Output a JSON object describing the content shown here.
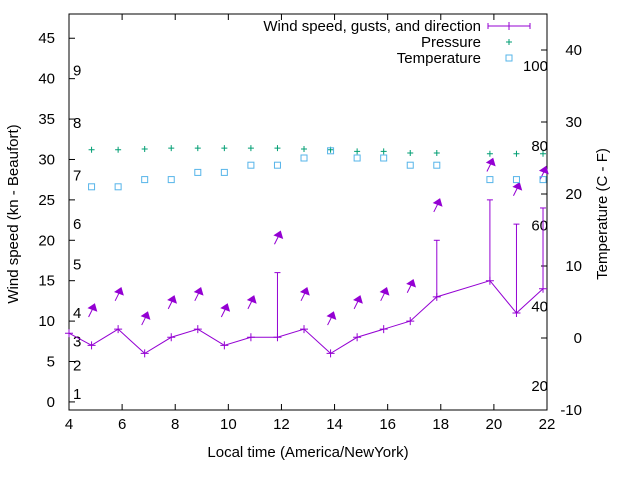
{
  "chart_data": {
    "type": "line",
    "xlabel": "Local time (America/NewYork)",
    "ylabel_left": "Wind speed (kn - Beaufort)",
    "ylabel_right": "Temperature (C - F)",
    "xlim": [
      4,
      22
    ],
    "ylim_left": [
      -1,
      48
    ],
    "ylim_right": [
      -10,
      45
    ],
    "x_ticks": [
      "4",
      "6",
      "8",
      "10",
      "12",
      "14",
      "16",
      "18",
      "20",
      "22"
    ],
    "y_left_ticks": [
      "0",
      "5",
      "10",
      "15",
      "20",
      "25",
      "30",
      "35",
      "40",
      "45"
    ],
    "y_right_ticks": [
      "-10",
      "0",
      "10",
      "20",
      "30",
      "40"
    ],
    "beaufort_labels": [
      {
        "label": "1",
        "kn": 1
      },
      {
        "label": "2",
        "kn": 4.5
      },
      {
        "label": "3",
        "kn": 7.5
      },
      {
        "label": "4",
        "kn": 11
      },
      {
        "label": "5",
        "kn": 17
      },
      {
        "label": "6",
        "kn": 22
      },
      {
        "label": "7",
        "kn": 28
      },
      {
        "label": "8",
        "kn": 34.5
      },
      {
        "label": "9",
        "kn": 41
      }
    ],
    "fahrenheit_labels": [
      {
        "label": "20",
        "c": -6.7
      },
      {
        "label": "40",
        "c": 4.4
      },
      {
        "label": "60",
        "c": 15.6
      },
      {
        "label": "80",
        "c": 26.7
      },
      {
        "label": "100",
        "c": 37.8
      }
    ],
    "legend": {
      "position": "top-right",
      "entries": [
        "Wind speed, gusts, and direction",
        "Pressure",
        "Temperature"
      ]
    },
    "series": [
      {
        "name": "Wind speed, gusts, and direction",
        "color": "#9400d3",
        "x": [
          4,
          4.85,
          5.85,
          6.85,
          7.85,
          8.85,
          9.85,
          10.85,
          11.85,
          12.85,
          13.85,
          14.85,
          15.85,
          16.85,
          17.85,
          19.85,
          20.85,
          21.85
        ],
        "speed": [
          8.5,
          7,
          9,
          6,
          8,
          9,
          7,
          8,
          8,
          9,
          6,
          8,
          9,
          10,
          13,
          15,
          11,
          14
        ],
        "gust": [
          null,
          null,
          null,
          null,
          null,
          null,
          null,
          null,
          16,
          null,
          null,
          null,
          null,
          null,
          20,
          25,
          22,
          24
        ],
        "direction_arrow_kn": [
          null,
          11.5,
          13.5,
          10.5,
          12.5,
          13.5,
          11.5,
          12.5,
          20.5,
          13.5,
          10.5,
          12.5,
          13.5,
          14.5,
          24.5,
          29.5,
          26.5,
          28.5
        ]
      },
      {
        "name": "Pressure",
        "color": "#009e73",
        "x": [
          4.85,
          5.85,
          6.85,
          7.85,
          8.85,
          9.85,
          10.85,
          11.85,
          12.85,
          13.85,
          14.85,
          15.85,
          16.85,
          17.85,
          19.85,
          20.85,
          21.85
        ],
        "values_left_axis": [
          31.2,
          31.2,
          31.3,
          31.4,
          31.4,
          31.4,
          31.4,
          31.4,
          31.3,
          31.2,
          31.0,
          31.0,
          30.8,
          30.8,
          30.7,
          30.7,
          30.7
        ]
      },
      {
        "name": "Temperature",
        "color": "#56b4e9",
        "x": [
          4.85,
          5.85,
          6.85,
          7.85,
          8.85,
          9.85,
          10.85,
          11.85,
          12.85,
          13.85,
          14.85,
          15.85,
          16.85,
          17.85,
          19.85,
          20.85,
          21.85
        ],
        "values_celsius": [
          21,
          21,
          22,
          22,
          23,
          23,
          24,
          24,
          25,
          26,
          25,
          25,
          24,
          24,
          22,
          22,
          22
        ]
      }
    ]
  }
}
